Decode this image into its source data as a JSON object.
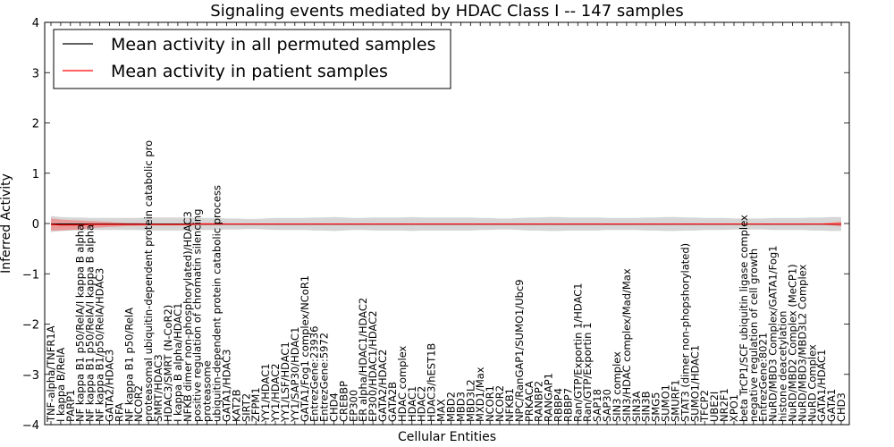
{
  "chart_data": {
    "type": "line",
    "title": "Signaling events mediated by HDAC Class I -- 147 samples",
    "xlabel": "Cellular Entities",
    "ylabel": "Inferred Activity",
    "ylim": [
      -4,
      4
    ],
    "yticks": [
      -4,
      -3,
      -2,
      -1,
      0,
      1,
      2,
      3,
      4
    ],
    "grid": false,
    "legend_position": "top-left",
    "colors": {
      "permuted_line": "#000000",
      "patient_line": "#ff0000",
      "permuted_band": "#c8c8c8",
      "patient_band": "#f08080",
      "frame": "#000000"
    },
    "categories": [
      "TNF-alpha/TNFR1A",
      "I kappa B/RelA",
      "PARP1",
      "NF kappa B1 p50/RelA/I kappa B alpha",
      "NF kappa B1 p50/RelA/I kappa B alpha",
      "NF kappa B1/p50/RelA/HDAC3",
      "GATA2/HDAC3",
      "RFA",
      "NF kappa B1 p50/RelA",
      "NCOR2",
      "proteasomal ubiquitin-dependent protein catabolic process",
      "SMRT/HDAC3",
      "HDAC3/SMRT (N-CoR2)",
      "I kappa B alpha/HDAC1",
      "NFKB dimer non-phosphorylated)/HDAC3",
      "positive regulation of chromatin silencing",
      "proteasome",
      "ubiquitin-dependent protein catabolic process",
      "GATA1/HDAC3",
      "KAT2B",
      "SIRT2",
      "ZFPM1",
      "YY1/HDAC1",
      "YY1/HDAC2",
      "YY1/LSF/HDAC1",
      "YY1/SAP30/HDAC1",
      "GATA1/Fog1 complex/NCoR1",
      "EntrezGene:23936",
      "EntrezGene:5972",
      "CHD4",
      "CREBBP",
      "EP300",
      "ER alpha/HDAC1/HDAC2",
      "EP300/HDAC1/HDAC2",
      "GATA2/HDAC2",
      "GATA2B",
      "HDAC complex",
      "HDAC1",
      "HDAC2",
      "HDAC3/hEST1B",
      "MAX",
      "MBD2",
      "MBD3",
      "MBD3L2",
      "MXD1/Max",
      "NCOR1",
      "NCOR2",
      "NFKB1",
      "NPC/RanGAP1/SUMO1/Ubc9",
      "PRKACA",
      "RANBP2",
      "RANGAP1",
      "RBBP4",
      "RBBP7",
      "Ran/GTP/Exportin 1/HDAC1",
      "Ran/GTP/Exportin 1",
      "SAP18",
      "SAP30",
      "SIN3 complex",
      "SIN3/HDAC complex/Mad/Max",
      "SIN3A",
      "SIN3B",
      "SMG5",
      "SUMO1",
      "SMURF1",
      "STAT3 (dimer non-phopshorylated)",
      "SUMO1/HDAC1",
      "TFCP2",
      "UBE2I",
      "NR2F1",
      "XPO1",
      "beta TrCP1/SCF ubiquitin ligase complex",
      "negative regulation of cell growth",
      "EntrezGene:8021",
      "NuRD/MBD3 Complex/GATA1/Fog1",
      "histone deacetylation",
      "NuRD/MBD2 Complex (MeCP1)",
      "NuRD/MBD3/MBD3L2 Complex",
      "NuRD Complex",
      "GATA1/HDAC1",
      "GATA1",
      "CHD3"
    ],
    "visible_labels": [
      "TNF-alpha/TNFR1A",
      "I kappa B/RelA",
      "PARP1",
      "NF kappa B1 p50/RelA/I kappa B alpha",
      "NF kappa B1 p50/RelA/I kappa B alpha",
      "NF kappa B1/p50/RelA/HDAC3",
      "GATA2/HDAC3",
      "RFA",
      "NF kappa B1 p50/RelA",
      "NCOR2",
      "proteasomal ubiquitin-dependent protein catabolic pro",
      "SMRT/HDAC3",
      "HDAC3/SMRT (N-CoR2)",
      "I kappa B alpha/HDAC1",
      "NFKB dimer non-phosphorylated)/HDAC3",
      "positive regulation of chromatin silencing",
      "proteasome",
      "ubiquitin-dependent protein catabolic process",
      "GATA1/HDAC3",
      "KAT2B",
      "SIRT2",
      "ZFPM1",
      "YY1/HDAC1",
      "YY1/HDAC2",
      "YY1/LSF/HDAC1",
      "YY1/SAP30/HDAC1",
      "GATA1/Fog1 complex/NCoR1",
      "EntrezGene:23936",
      "EntrezGene:5972",
      "CHD4",
      "CREBBP",
      "EP300",
      "ER alpha/HDAC1/HDAC2",
      "EP300/HDAC1/HDAC2",
      "GATA2/HDAC2",
      "GATA2B",
      "HDAC complex",
      "HDAC1",
      "HDAC2",
      "HDAC3/hEST1B",
      "MAX",
      "MBD2",
      "MBD3",
      "MBD3L2",
      "MXD1/Max",
      "NCOR1",
      "NCOR2",
      "NFKB1",
      "NPC/RanGAP1/SUMO1/Ubc9",
      "PRKACA",
      "RANBP2",
      "RANGAP1",
      "RBBP4",
      "RBBP7",
      "Ran/GTP/Exportin 1/HDAC1",
      "Ran/GTP/Exportin 1",
      "SAP18",
      "SAP30",
      "SIN3 complex",
      "SIN3/HDAC complex/Mad/Max",
      "SIN3A",
      "SIN3B",
      "SMG5",
      "SUMO1",
      "SMURF1",
      "STAT3 (dimer non-phopshorylated)",
      "SUMO1/HDAC1",
      "TFCP2",
      "UBE2I",
      "NR2F1",
      "XPO1",
      "beta TrCP1/SCF ubiquitin ligase complex",
      "negative regulation of cell growth",
      "EntrezGene:8021",
      "NuRD/MBD3 Complex/GATA1/Fog1",
      "histone deacetylation",
      "NuRD/MBD2 Complex (MeCP1)",
      "NuRD/MBD3/MBD3L2 Complex",
      "NuRD Complex",
      "GATA1/HDAC1",
      "GATA1",
      "CHD3"
    ],
    "series": [
      {
        "name": "Mean activity in all permuted samples",
        "color": "#000000",
        "values": [
          -0.01,
          -0.01,
          -0.01,
          -0.01,
          -0.01,
          -0.01,
          -0.01,
          -0.01,
          -0.01,
          -0.01,
          -0.01,
          -0.01,
          -0.01,
          -0.01,
          -0.01,
          -0.01,
          -0.01,
          -0.01,
          -0.01,
          -0.01,
          -0.01,
          -0.01,
          -0.01,
          -0.01,
          -0.01,
          -0.01,
          -0.01,
          -0.01,
          -0.01,
          -0.01,
          -0.01,
          -0.01,
          -0.01,
          -0.01,
          -0.01,
          -0.01,
          -0.01,
          -0.01,
          -0.01,
          -0.01,
          -0.01,
          -0.01,
          -0.01,
          -0.01,
          -0.01,
          -0.01,
          -0.01,
          -0.01,
          -0.01,
          -0.01,
          -0.01,
          -0.01,
          -0.01,
          -0.01,
          -0.01,
          -0.01,
          -0.01,
          -0.01,
          -0.01,
          -0.01,
          -0.01,
          -0.01,
          -0.01,
          -0.01,
          -0.01,
          -0.01,
          -0.01,
          -0.01,
          -0.01,
          -0.01,
          -0.01,
          -0.01,
          -0.01,
          -0.01,
          -0.01,
          -0.01,
          -0.01,
          -0.01,
          -0.01,
          -0.01,
          -0.01,
          -0.01
        ],
        "band": [
          0.16,
          0.14,
          0.13,
          0.13,
          0.12,
          0.12,
          0.12,
          0.12,
          0.12,
          0.12,
          0.13,
          0.13,
          0.13,
          0.13,
          0.13,
          0.12,
          0.12,
          0.12,
          0.11,
          0.11,
          0.1,
          0.1,
          0.11,
          0.12,
          0.12,
          0.12,
          0.12,
          0.13,
          0.13,
          0.14,
          0.13,
          0.12,
          0.12,
          0.13,
          0.13,
          0.13,
          0.13,
          0.14,
          0.13,
          0.13,
          0.13,
          0.13,
          0.13,
          0.13,
          0.12,
          0.12,
          0.11,
          0.11,
          0.12,
          0.13,
          0.13,
          0.14,
          0.14,
          0.13,
          0.13,
          0.13,
          0.13,
          0.12,
          0.12,
          0.12,
          0.12,
          0.13,
          0.13,
          0.14,
          0.14,
          0.13,
          0.13,
          0.12,
          0.12,
          0.12,
          0.11,
          0.11,
          0.11,
          0.11,
          0.12,
          0.12,
          0.12,
          0.12,
          0.13,
          0.13,
          0.14,
          0.14
        ]
      },
      {
        "name": "Mean activity in patient samples",
        "color": "#ff0000",
        "values": [
          -0.02,
          -0.03,
          -0.03,
          -0.03,
          -0.02,
          -0.02,
          -0.02,
          -0.02,
          -0.02,
          -0.02,
          -0.02,
          -0.02,
          -0.02,
          -0.02,
          -0.02,
          -0.01,
          -0.01,
          -0.01,
          -0.01,
          -0.01,
          -0.01,
          -0.01,
          -0.01,
          -0.01,
          -0.01,
          -0.01,
          -0.01,
          -0.01,
          -0.01,
          -0.01,
          -0.01,
          -0.01,
          -0.01,
          -0.01,
          -0.01,
          -0.01,
          -0.01,
          -0.01,
          -0.01,
          -0.01,
          -0.01,
          -0.01,
          -0.01,
          -0.01,
          -0.01,
          -0.01,
          -0.01,
          -0.01,
          -0.01,
          -0.01,
          -0.01,
          -0.01,
          -0.01,
          -0.01,
          -0.01,
          -0.01,
          -0.01,
          -0.01,
          -0.01,
          -0.01,
          -0.01,
          -0.01,
          -0.01,
          -0.01,
          -0.01,
          -0.01,
          -0.01,
          -0.01,
          -0.01,
          -0.01,
          -0.01,
          -0.01,
          -0.01,
          -0.01,
          -0.01,
          -0.01,
          -0.01,
          -0.01,
          -0.01,
          -0.01,
          -0.01,
          -0.01
        ],
        "band": [
          0.12,
          0.11,
          0.1,
          0.09,
          0.07,
          0.06,
          0.05,
          0.04,
          0.03,
          0.03,
          0.02,
          0.02,
          0.02,
          0.02,
          0.02,
          0.02,
          0.02,
          0.02,
          0.01,
          0.01,
          0.01,
          0.01,
          0.01,
          0.01,
          0.01,
          0.01,
          0.01,
          0.01,
          0.01,
          0.01,
          0.01,
          0.01,
          0.01,
          0.01,
          0.01,
          0.01,
          0.01,
          0.01,
          0.01,
          0.01,
          0.01,
          0.01,
          0.01,
          0.01,
          0.01,
          0.01,
          0.01,
          0.01,
          0.01,
          0.01,
          0.01,
          0.01,
          0.01,
          0.01,
          0.01,
          0.01,
          0.01,
          0.01,
          0.01,
          0.01,
          0.01,
          0.01,
          0.01,
          0.01,
          0.01,
          0.01,
          0.01,
          0.01,
          0.01,
          0.01,
          0.01,
          0.01,
          0.01,
          0.01,
          0.01,
          0.01,
          0.01,
          0.01,
          0.01,
          0.01,
          0.03,
          0.05
        ]
      }
    ]
  }
}
